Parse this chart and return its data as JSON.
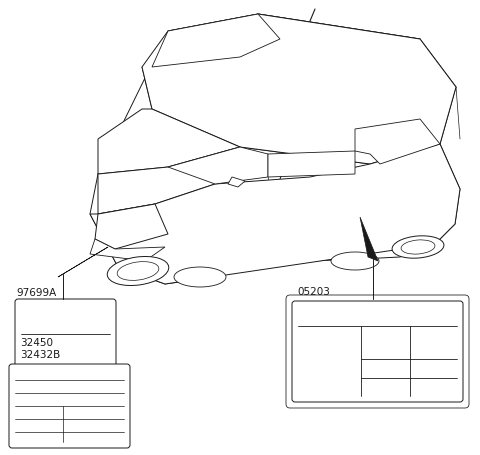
{
  "bg_color": "#ffffff",
  "line_color": "#1a1a1a",
  "fig_width": 4.8,
  "fig_height": 4.56,
  "dpi": 100,
  "label_97699A": "97699A",
  "label_05203": "05203",
  "label_32450": "32450",
  "label_32432B": "32432B",
  "font_size": 7.5
}
